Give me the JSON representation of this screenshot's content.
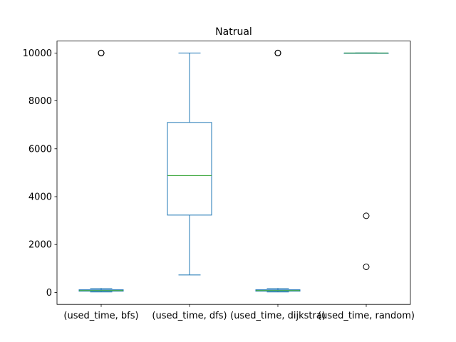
{
  "chart_data": {
    "type": "box",
    "title": "Natrual",
    "xlabel": "",
    "ylabel": "",
    "ylim": [
      -500,
      10500
    ],
    "yticks": [
      0,
      2000,
      4000,
      6000,
      8000,
      10000
    ],
    "grid": false,
    "colors": {
      "box": "#1f77b4",
      "median": "#2ca02c",
      "flier": "#000000"
    },
    "categories": [
      "(used_time, bfs)",
      "(used_time, dfs)",
      "(used_time, dijkstra)",
      "(used_time, random)"
    ],
    "boxes": [
      {
        "whisker_low": 20,
        "q1": 50,
        "median": 80,
        "q3": 110,
        "whisker_high": 170,
        "outliers": [
          10000,
          10000,
          10000
        ]
      },
      {
        "whisker_low": 730,
        "q1": 3230,
        "median": 4880,
        "q3": 7100,
        "whisker_high": 10000,
        "outliers": []
      },
      {
        "whisker_low": 20,
        "q1": 50,
        "median": 80,
        "q3": 110,
        "whisker_high": 170,
        "outliers": [
          10000,
          10000,
          10000
        ]
      },
      {
        "whisker_low": 10000,
        "q1": 10000,
        "median": 10000,
        "q3": 10000,
        "whisker_high": 10000,
        "outliers": [
          3200,
          1070
        ]
      }
    ]
  }
}
